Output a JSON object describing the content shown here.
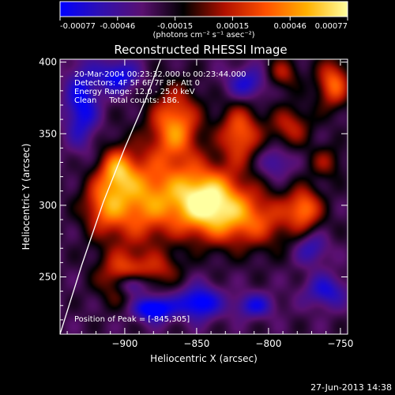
{
  "chart_data": {
    "type": "heatmap",
    "title": "Reconstructed RHESSI Image",
    "xlabel": "Heliocentric X (arcsec)",
    "ylabel": "Heliocentric Y (arcsec)",
    "xlim": [
      -945,
      -745
    ],
    "ylim": [
      210,
      402
    ],
    "xticks": [
      -900,
      -850,
      -800,
      -750
    ],
    "yticks": [
      250,
      300,
      350,
      400
    ],
    "colorbar": {
      "ticks": [
        "-0.00077",
        "-0.00046",
        "-0.00015",
        "0.00015",
        "0.00046",
        "0.00077"
      ],
      "vmin": -0.00077,
      "vmax": 0.00077,
      "unit_label": "(photons cm⁻² s⁻¹ asec⁻²)",
      "colormap": [
        "#0000ff",
        "#3010b0",
        "#5a1070",
        "#000000",
        "#b01000",
        "#ff5000",
        "#ffb000",
        "#ffffa0"
      ]
    },
    "annotations": [
      "20-Mar-2004 00:23:32.000 to 00:23:44.000",
      "Detectors: 4F 5F 6F 7F 8F, Att 0",
      "Energy Range: 12.0 - 25.0 keV",
      "Clean     Total counts: 186."
    ],
    "peak_label": "Position of Peak = [-845,305]",
    "peak": {
      "x": -845,
      "y": 305
    },
    "limb": [
      [
        -945,
        210
      ],
      [
        -930,
        258
      ],
      [
        -915,
        302
      ],
      [
        -900,
        340
      ],
      [
        -885,
        375
      ],
      [
        -875,
        402
      ]
    ],
    "blobs": [
      {
        "x": -845,
        "y": 305,
        "sx": 18,
        "sy": 16,
        "amp": 0.00095
      },
      {
        "x": -815,
        "y": 290,
        "sx": 25,
        "sy": 14,
        "amp": 0.00055
      },
      {
        "x": -890,
        "y": 305,
        "sx": 18,
        "sy": 22,
        "amp": 0.0007
      },
      {
        "x": -865,
        "y": 355,
        "sx": 12,
        "sy": 18,
        "amp": 0.0007
      },
      {
        "x": -820,
        "y": 350,
        "sx": 10,
        "sy": 14,
        "amp": 0.0006
      },
      {
        "x": -785,
        "y": 355,
        "sx": 10,
        "sy": 10,
        "amp": 0.0004
      },
      {
        "x": -775,
        "y": 298,
        "sx": 8,
        "sy": 10,
        "amp": 0.00055
      },
      {
        "x": -755,
        "y": 385,
        "sx": 8,
        "sy": 12,
        "amp": 0.0006
      },
      {
        "x": -790,
        "y": 392,
        "sx": 8,
        "sy": 8,
        "amp": 0.00035
      },
      {
        "x": -900,
        "y": 250,
        "sx": 12,
        "sy": 12,
        "amp": 0.0006
      },
      {
        "x": -905,
        "y": 325,
        "sx": 8,
        "sy": 10,
        "amp": 0.0005
      },
      {
        "x": -875,
        "y": 255,
        "sx": 10,
        "sy": 8,
        "amp": 0.0003
      },
      {
        "x": -915,
        "y": 300,
        "sx": 10,
        "sy": 14,
        "amp": 0.00045
      },
      {
        "x": -760,
        "y": 330,
        "sx": 8,
        "sy": 8,
        "amp": 0.0003
      },
      {
        "x": -880,
        "y": 228,
        "sx": 10,
        "sy": 6,
        "amp": -0.0007
      },
      {
        "x": -848,
        "y": 232,
        "sx": 10,
        "sy": 8,
        "amp": -0.0006
      },
      {
        "x": -895,
        "y": 245,
        "sx": 8,
        "sy": 6,
        "amp": -0.0007
      },
      {
        "x": -810,
        "y": 230,
        "sx": 10,
        "sy": 6,
        "amp": -0.0004
      },
      {
        "x": -760,
        "y": 240,
        "sx": 10,
        "sy": 8,
        "amp": -0.0004
      },
      {
        "x": -930,
        "y": 370,
        "sx": 8,
        "sy": 20,
        "amp": -0.0005
      },
      {
        "x": -905,
        "y": 390,
        "sx": 10,
        "sy": 8,
        "amp": -0.0005
      },
      {
        "x": -815,
        "y": 385,
        "sx": 10,
        "sy": 8,
        "amp": -0.0004
      },
      {
        "x": -795,
        "y": 330,
        "sx": 8,
        "sy": 8,
        "amp": -0.0003
      },
      {
        "x": -770,
        "y": 270,
        "sx": 8,
        "sy": 8,
        "amp": -0.00035
      }
    ],
    "grid": false
  },
  "footer_date": "27-Jun-2013 14:38"
}
